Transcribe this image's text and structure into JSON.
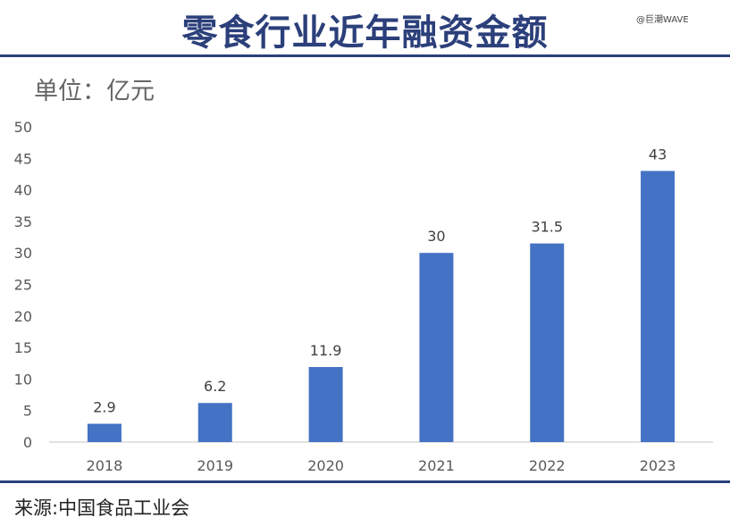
{
  "header": {
    "title": "零食行业近年融资金额",
    "watermark": "@巨潮WAVE",
    "unit": "单位：亿元"
  },
  "footer": {
    "source": "来源:中国食品工业会"
  },
  "chart_data": {
    "type": "bar",
    "categories": [
      "2018",
      "2019",
      "2020",
      "2021",
      "2022",
      "2023"
    ],
    "values": [
      2.9,
      6.2,
      11.9,
      30,
      31.5,
      43
    ],
    "data_labels": [
      "2.9",
      "6.2",
      "11.9",
      "30",
      "31.5",
      "43"
    ],
    "ylim": [
      0,
      50
    ],
    "yticks": [
      0,
      5,
      10,
      15,
      20,
      25,
      30,
      35,
      40,
      45,
      50
    ],
    "grid": false,
    "bar_color": "#4472c4",
    "title": "零食行业近年融资金额",
    "xlabel": "",
    "ylabel": "单位：亿元"
  },
  "colors": {
    "title": "#2b3f7a",
    "rule": "#2b3f7a",
    "bar": "#4472c4"
  }
}
